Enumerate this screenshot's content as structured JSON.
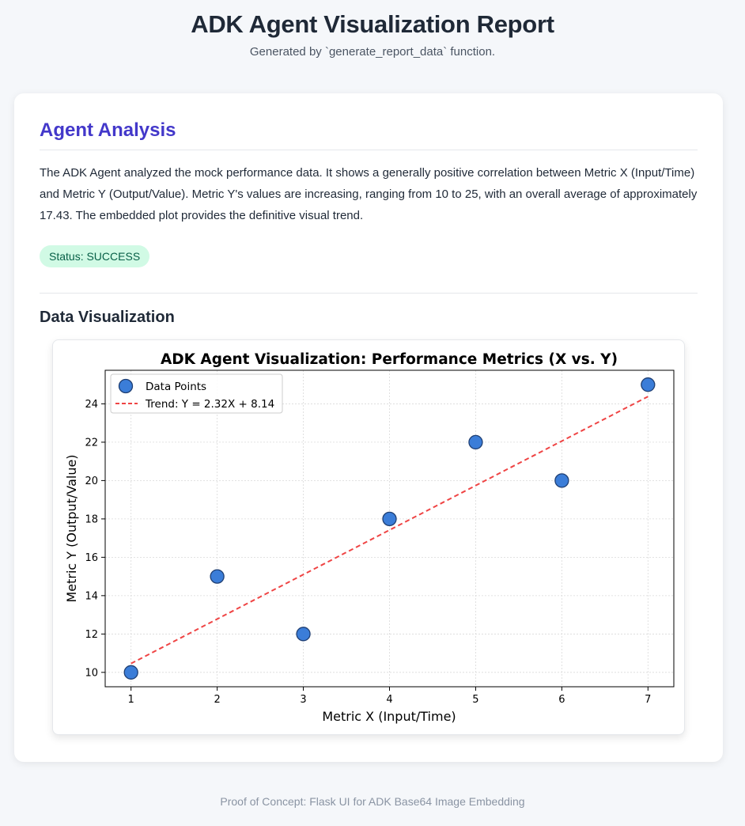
{
  "header": {
    "title": "ADK Agent Visualization Report",
    "subtitle": "Generated by `generate_report_data` function."
  },
  "analysis": {
    "title": "Agent Analysis",
    "summary": "The ADK Agent analyzed the mock performance data. It shows a generally positive correlation between Metric X (Input/Time) and Metric Y (Output/Value). Metric Y's values are increasing, ranging from 10 to 25, with an overall average of approximately 17.43. The embedded plot provides the definitive visual trend.",
    "status": "Status: SUCCESS"
  },
  "visualization": {
    "title": "Data Visualization"
  },
  "footer": {
    "text": "Proof of Concept: Flask UI for ADK Base64 Image Embedding"
  },
  "colors": {
    "accent": "#4338ca",
    "point_fill": "#3b7dd8",
    "point_edge": "#1f3f73",
    "trend": "#ef4444",
    "status_bg": "#d1fae5",
    "status_text": "#065f46"
  },
  "chart_data": {
    "type": "scatter",
    "title": "ADK Agent Visualization: Performance Metrics (X vs. Y)",
    "xlabel": "Metric X (Input/Time)",
    "ylabel": "Metric Y (Output/Value)",
    "xlim": [
      0.7,
      7.3
    ],
    "ylim": [
      9.25,
      25.75
    ],
    "xticks": [
      1,
      2,
      3,
      4,
      5,
      6,
      7
    ],
    "yticks": [
      10,
      12,
      14,
      16,
      18,
      20,
      22,
      24
    ],
    "grid": true,
    "legend_position": "top-left",
    "series": [
      {
        "name": "Data Points",
        "kind": "scatter",
        "x": [
          1,
          2,
          3,
          4,
          5,
          6,
          7
        ],
        "y": [
          10,
          15,
          12,
          18,
          22,
          20,
          25
        ]
      },
      {
        "name": "Trend: Y = 2.32X + 8.14",
        "kind": "line",
        "style": "dashed",
        "x": [
          1,
          7
        ],
        "y": [
          10.46,
          24.38
        ]
      }
    ]
  }
}
